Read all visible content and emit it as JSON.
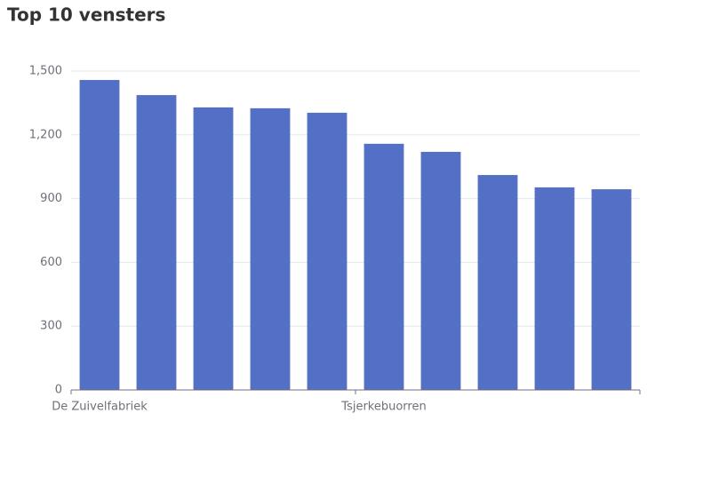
{
  "chart_data": {
    "type": "bar",
    "title": "Top 10 vensters",
    "categories": [
      "De Zuivelfabriek",
      null,
      null,
      null,
      null,
      "Tsjerkebuorren",
      null,
      null,
      null,
      null
    ],
    "values": [
      1458,
      1387,
      1329,
      1325,
      1304,
      1158,
      1120,
      1011,
      953,
      944
    ],
    "color": "#5470c6",
    "ylim": [
      0,
      1500
    ],
    "yticks": [
      0,
      300,
      600,
      900,
      {
        "value": 1200,
        "label": "1,200"
      },
      {
        "value": 1500,
        "label": "1,500"
      }
    ],
    "grid": true
  }
}
